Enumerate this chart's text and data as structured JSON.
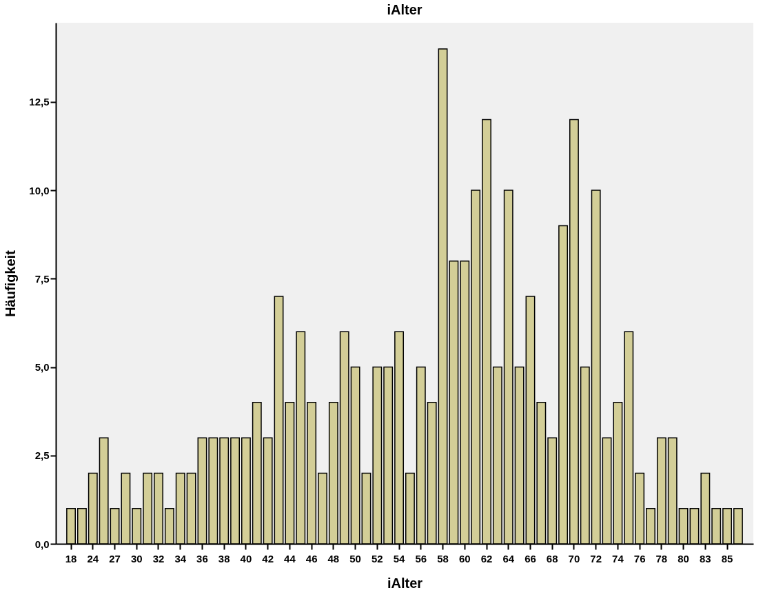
{
  "chart_data": {
    "type": "bar",
    "title": "iAlter",
    "xlabel": "iAlter",
    "ylabel": "Häufigkeit",
    "categories": [
      "18",
      null,
      "24",
      null,
      "27",
      null,
      "30",
      null,
      "32",
      null,
      "34",
      null,
      "36",
      null,
      "38",
      null,
      "40",
      null,
      "42",
      null,
      "44",
      null,
      "46",
      null,
      "48",
      null,
      "50",
      null,
      "52",
      null,
      "54",
      null,
      "56",
      null,
      "58",
      null,
      "60",
      null,
      "62",
      null,
      "64",
      null,
      "66",
      null,
      "68",
      null,
      "70",
      null,
      "72",
      null,
      "74",
      null,
      "76",
      null,
      "78",
      null,
      "80",
      null,
      "83",
      null,
      "85",
      null
    ],
    "values": [
      1,
      1,
      2,
      3,
      1,
      2,
      1,
      2,
      2,
      1,
      2,
      2,
      3,
      3,
      3,
      3,
      3,
      4,
      3,
      7,
      4,
      6,
      4,
      2,
      4,
      6,
      5,
      2,
      5,
      5,
      6,
      2,
      5,
      4,
      14,
      8,
      8,
      10,
      12,
      5,
      10,
      5,
      7,
      4,
      3,
      9,
      12,
      5,
      10,
      3,
      4,
      6,
      2,
      1,
      3,
      3,
      1,
      1,
      2,
      1,
      1,
      1
    ],
    "color": "#d3ce97",
    "ylim": [
      0,
      14.74
    ],
    "yticks": [
      {
        "value": 0,
        "label": "0,0"
      },
      {
        "value": 2.5,
        "label": "2,5"
      },
      {
        "value": 5,
        "label": "5,0"
      },
      {
        "value": 7.5,
        "label": "7,5"
      },
      {
        "value": 10,
        "label": "10,0"
      },
      {
        "value": 12.5,
        "label": "12,5"
      }
    ]
  }
}
